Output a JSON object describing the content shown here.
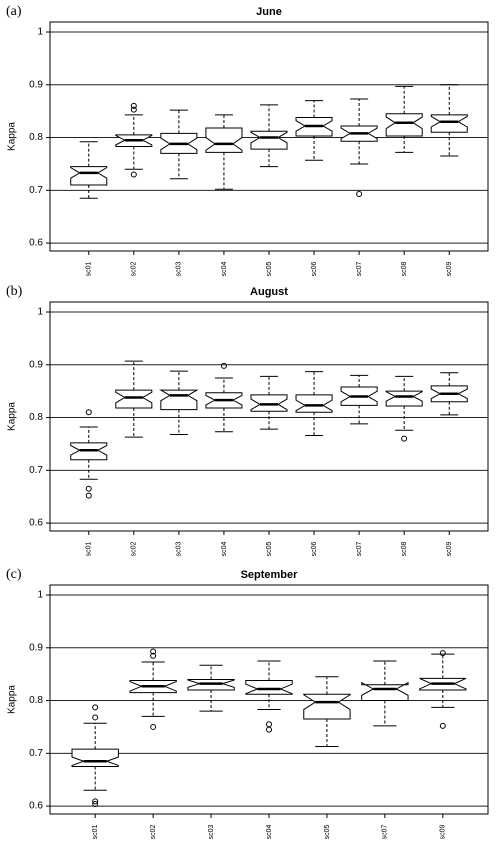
{
  "chart_data": [
    {
      "type": "box",
      "panel_label": "(a)",
      "title": "June",
      "ylabel": "Kappa",
      "categories": [
        "sc01",
        "sc02",
        "sc03",
        "sc04",
        "sc05",
        "sc06",
        "sc07",
        "sc08",
        "sc09"
      ],
      "whisker_low": [
        0.685,
        0.74,
        0.722,
        0.702,
        0.745,
        0.757,
        0.75,
        0.772,
        0.765
      ],
      "q1": [
        0.71,
        0.783,
        0.77,
        0.772,
        0.778,
        0.803,
        0.793,
        0.803,
        0.81
      ],
      "median": [
        0.733,
        0.795,
        0.788,
        0.788,
        0.8,
        0.822,
        0.808,
        0.828,
        0.83
      ],
      "q3": [
        0.745,
        0.805,
        0.808,
        0.818,
        0.812,
        0.838,
        0.822,
        0.845,
        0.843
      ],
      "whisker_high": [
        0.792,
        0.843,
        0.852,
        0.843,
        0.862,
        0.87,
        0.873,
        0.897,
        0.9
      ],
      "notch_low": [
        0.723,
        0.786,
        0.777,
        0.776,
        0.79,
        0.812,
        0.798,
        0.817,
        0.82
      ],
      "notch_high": [
        0.743,
        0.804,
        0.799,
        0.8,
        0.81,
        0.832,
        0.818,
        0.839,
        0.84
      ],
      "outliers": [
        [],
        [
          0.73,
          0.853,
          0.86
        ],
        [],
        [],
        [],
        [],
        [
          0.693
        ],
        [],
        []
      ],
      "ylim": [
        0.585,
        1.019
      ],
      "yticks": [
        0.6,
        0.7,
        0.8,
        0.9,
        1
      ],
      "grid": true,
      "color": "#000000"
    },
    {
      "type": "box",
      "panel_label": "(b)",
      "title": "August",
      "ylabel": "Kappa",
      "categories": [
        "sc01",
        "sc02",
        "sc03",
        "sc04",
        "sc05",
        "sc06",
        "sc07",
        "sc08",
        "sc09"
      ],
      "whisker_low": [
        0.683,
        0.763,
        0.768,
        0.773,
        0.778,
        0.766,
        0.788,
        0.776,
        0.805
      ],
      "q1": [
        0.72,
        0.818,
        0.815,
        0.818,
        0.812,
        0.81,
        0.823,
        0.822,
        0.83
      ],
      "median": [
        0.738,
        0.838,
        0.842,
        0.833,
        0.825,
        0.823,
        0.84,
        0.84,
        0.845
      ],
      "q3": [
        0.752,
        0.852,
        0.852,
        0.847,
        0.843,
        0.843,
        0.858,
        0.85,
        0.86
      ],
      "whisker_high": [
        0.782,
        0.907,
        0.888,
        0.875,
        0.878,
        0.887,
        0.88,
        0.878,
        0.885
      ],
      "notch_low": [
        0.729,
        0.828,
        0.832,
        0.824,
        0.815,
        0.813,
        0.83,
        0.831,
        0.836
      ],
      "notch_high": [
        0.747,
        0.848,
        0.852,
        0.842,
        0.835,
        0.833,
        0.85,
        0.849,
        0.854
      ],
      "outliers": [
        [
          0.81,
          0.665,
          0.652
        ],
        [],
        [],
        [
          0.898
        ],
        [],
        [],
        [],
        [
          0.76
        ],
        []
      ],
      "ylim": [
        0.585,
        1.019
      ],
      "yticks": [
        0.6,
        0.7,
        0.8,
        0.9,
        1
      ],
      "grid": true,
      "color": "#000000"
    },
    {
      "type": "box",
      "panel_label": "(c)",
      "title": "September",
      "ylabel": "Kappa",
      "categories": [
        "sc01",
        "sc02",
        "sc03",
        "sc04",
        "sc05",
        "sc07",
        "sc09"
      ],
      "whisker_low": [
        0.63,
        0.77,
        0.78,
        0.783,
        0.713,
        0.752,
        0.787
      ],
      "q1": [
        0.675,
        0.815,
        0.82,
        0.812,
        0.765,
        0.8,
        0.82
      ],
      "median": [
        0.685,
        0.827,
        0.832,
        0.822,
        0.797,
        0.822,
        0.832
      ],
      "q3": [
        0.708,
        0.838,
        0.84,
        0.838,
        0.812,
        0.83,
        0.842
      ],
      "whisker_high": [
        0.757,
        0.873,
        0.867,
        0.875,
        0.845,
        0.875,
        0.888
      ],
      "notch_low": [
        0.677,
        0.818,
        0.825,
        0.813,
        0.783,
        0.81,
        0.822
      ],
      "notch_high": [
        0.693,
        0.836,
        0.839,
        0.831,
        0.811,
        0.834,
        0.842
      ],
      "outliers": [
        [
          0.787,
          0.768,
          0.609,
          0.604
        ],
        [
          0.893,
          0.885,
          0.75
        ],
        [],
        [
          0.755,
          0.745
        ],
        [],
        [],
        [
          0.89,
          0.752
        ]
      ],
      "ylim": [
        0.585,
        1.019
      ],
      "yticks": [
        0.6,
        0.7,
        0.8,
        0.9,
        1
      ],
      "grid": true,
      "color": "#000000"
    }
  ]
}
